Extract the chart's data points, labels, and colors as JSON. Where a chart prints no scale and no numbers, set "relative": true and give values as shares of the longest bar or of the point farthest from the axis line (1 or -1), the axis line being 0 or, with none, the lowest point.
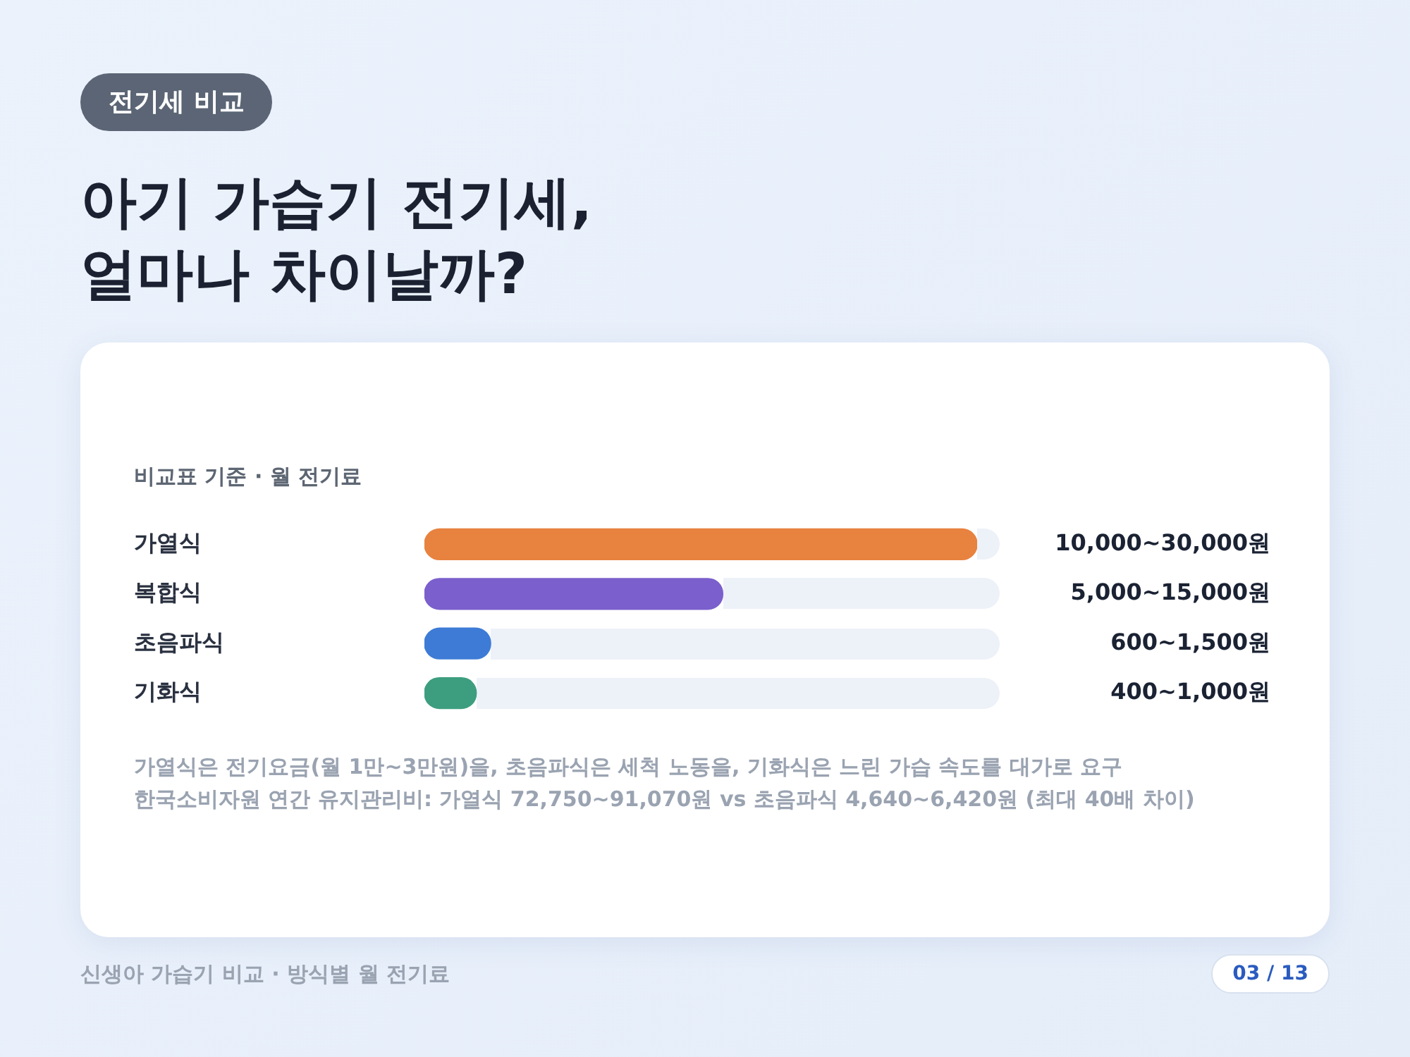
{
  "chart_data": {
    "type": "bar",
    "orientation": "horizontal",
    "relative": true,
    "title": "아기 가습기 전기세, 얼마나 차이날까?",
    "subtitle": "비교표 기준 · 월 전기료",
    "categories": [
      "가열식",
      "복합식",
      "초음파식",
      "기화식"
    ],
    "values": [
      1,
      0.54,
      0.12,
      0.094
    ],
    "colors": [
      "#e8823f",
      "#7b5fcc",
      "#3d7bd6",
      "#3d9e7f"
    ],
    "annotations": [
      "전기세 비교",
      "10,000~30,000원",
      "5,000~15,000원",
      "600~1,500원",
      "400~1,000원",
      "가열식은 전기요금(월 1만~3만원)을, 초음파식은 세척 노동을, 기화식은 느린 가습 속도를 대가로 요구",
      "한국소비자원 연간 유지관리비: 가열식 72,750~91,070원 vs 초음파식 4,640~6,420원 (최대 40배 차이)",
      "신생아 가습기 비교 · 방식별 월 전기료",
      "03 / 13"
    ]
  }
}
